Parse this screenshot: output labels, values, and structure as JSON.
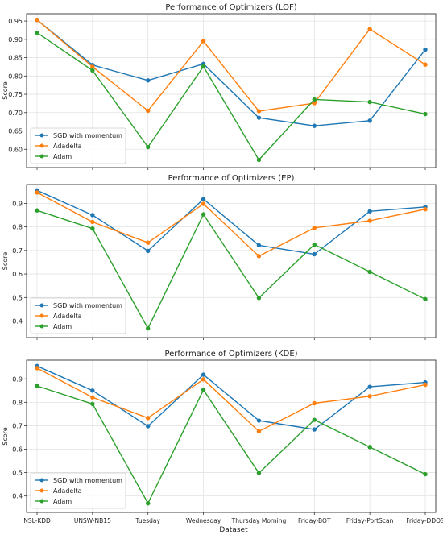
{
  "figure": {
    "xlabel": "Dataset"
  },
  "chart_data": [
    {
      "type": "line",
      "title": "Performance of Optimizers (LOF)",
      "xlabel": "",
      "ylabel": "Score",
      "ylim": [
        0.55,
        0.97
      ],
      "yticks": [
        0.6,
        0.65,
        0.7,
        0.75,
        0.8,
        0.85,
        0.9,
        0.95
      ],
      "ytick_labels": [
        "0.60",
        "0.65",
        "0.70",
        "0.75",
        "0.80",
        "0.85",
        "0.90",
        "0.95"
      ],
      "grid": true,
      "legend": "lower-left",
      "categories": [
        "NSL-KDD",
        "UNSW-NB15",
        "Tuesday",
        "Wednesday",
        "Thursday Morning",
        "Friday-BOT",
        "Friday-PortScan",
        "Friday-DDOS"
      ],
      "show_xtick_labels": false,
      "series": [
        {
          "name": "SGD with momentum",
          "color": "#1f77b4",
          "values": [
            0.953,
            0.83,
            0.788,
            0.833,
            0.686,
            0.664,
            0.678,
            0.872
          ]
        },
        {
          "name": "Adadelta",
          "color": "#ff7f0e",
          "values": [
            0.953,
            0.825,
            0.705,
            0.895,
            0.704,
            0.726,
            0.928,
            0.831
          ]
        },
        {
          "name": "Adam",
          "color": "#2ca02c",
          "values": [
            0.918,
            0.815,
            0.606,
            0.826,
            0.571,
            0.736,
            0.729,
            0.696
          ]
        }
      ]
    },
    {
      "type": "line",
      "title": "Performance of Optimizers (EP)",
      "xlabel": "",
      "ylabel": "Score",
      "ylim": [
        0.33,
        0.98
      ],
      "yticks": [
        0.4,
        0.5,
        0.6,
        0.7,
        0.8,
        0.9
      ],
      "ytick_labels": [
        "0.4",
        "0.5",
        "0.6",
        "0.7",
        "0.8",
        "0.9"
      ],
      "grid": true,
      "legend": "lower-left",
      "categories": [
        "NSL-KDD",
        "UNSW-NB15",
        "Tuesday",
        "Wednesday",
        "Thursday Morning",
        "Friday-BOT",
        "Friday-PortScan",
        "Friday-DDOS"
      ],
      "show_xtick_labels": false,
      "series": [
        {
          "name": "SGD with momentum",
          "color": "#1f77b4",
          "values": [
            0.955,
            0.85,
            0.698,
            0.918,
            0.722,
            0.684,
            0.866,
            0.885
          ]
        },
        {
          "name": "Adadelta",
          "color": "#ff7f0e",
          "values": [
            0.946,
            0.821,
            0.733,
            0.898,
            0.676,
            0.796,
            0.826,
            0.875
          ]
        },
        {
          "name": "Adam",
          "color": "#2ca02c",
          "values": [
            0.87,
            0.793,
            0.369,
            0.853,
            0.498,
            0.725,
            0.609,
            0.493
          ]
        }
      ]
    },
    {
      "type": "line",
      "title": "Performance of Optimizers (KDE)",
      "xlabel": "",
      "ylabel": "Score",
      "ylim": [
        0.33,
        0.98
      ],
      "yticks": [
        0.4,
        0.5,
        0.6,
        0.7,
        0.8,
        0.9
      ],
      "ytick_labels": [
        "0.4",
        "0.5",
        "0.6",
        "0.7",
        "0.8",
        "0.9"
      ],
      "grid": true,
      "legend": "lower-left",
      "categories": [
        "NSL-KDD",
        "UNSW-NB15",
        "Tuesday",
        "Wednesday",
        "Thursday Morning",
        "Friday-BOT",
        "Friday-PortScan",
        "Friday-DDOS"
      ],
      "show_xtick_labels": true,
      "series": [
        {
          "name": "SGD with momentum",
          "color": "#1f77b4",
          "values": [
            0.955,
            0.85,
            0.698,
            0.918,
            0.722,
            0.684,
            0.866,
            0.885
          ]
        },
        {
          "name": "Adadelta",
          "color": "#ff7f0e",
          "values": [
            0.946,
            0.821,
            0.733,
            0.898,
            0.676,
            0.796,
            0.826,
            0.875
          ]
        },
        {
          "name": "Adam",
          "color": "#2ca02c",
          "values": [
            0.87,
            0.793,
            0.369,
            0.853,
            0.498,
            0.725,
            0.609,
            0.493
          ]
        }
      ]
    }
  ]
}
